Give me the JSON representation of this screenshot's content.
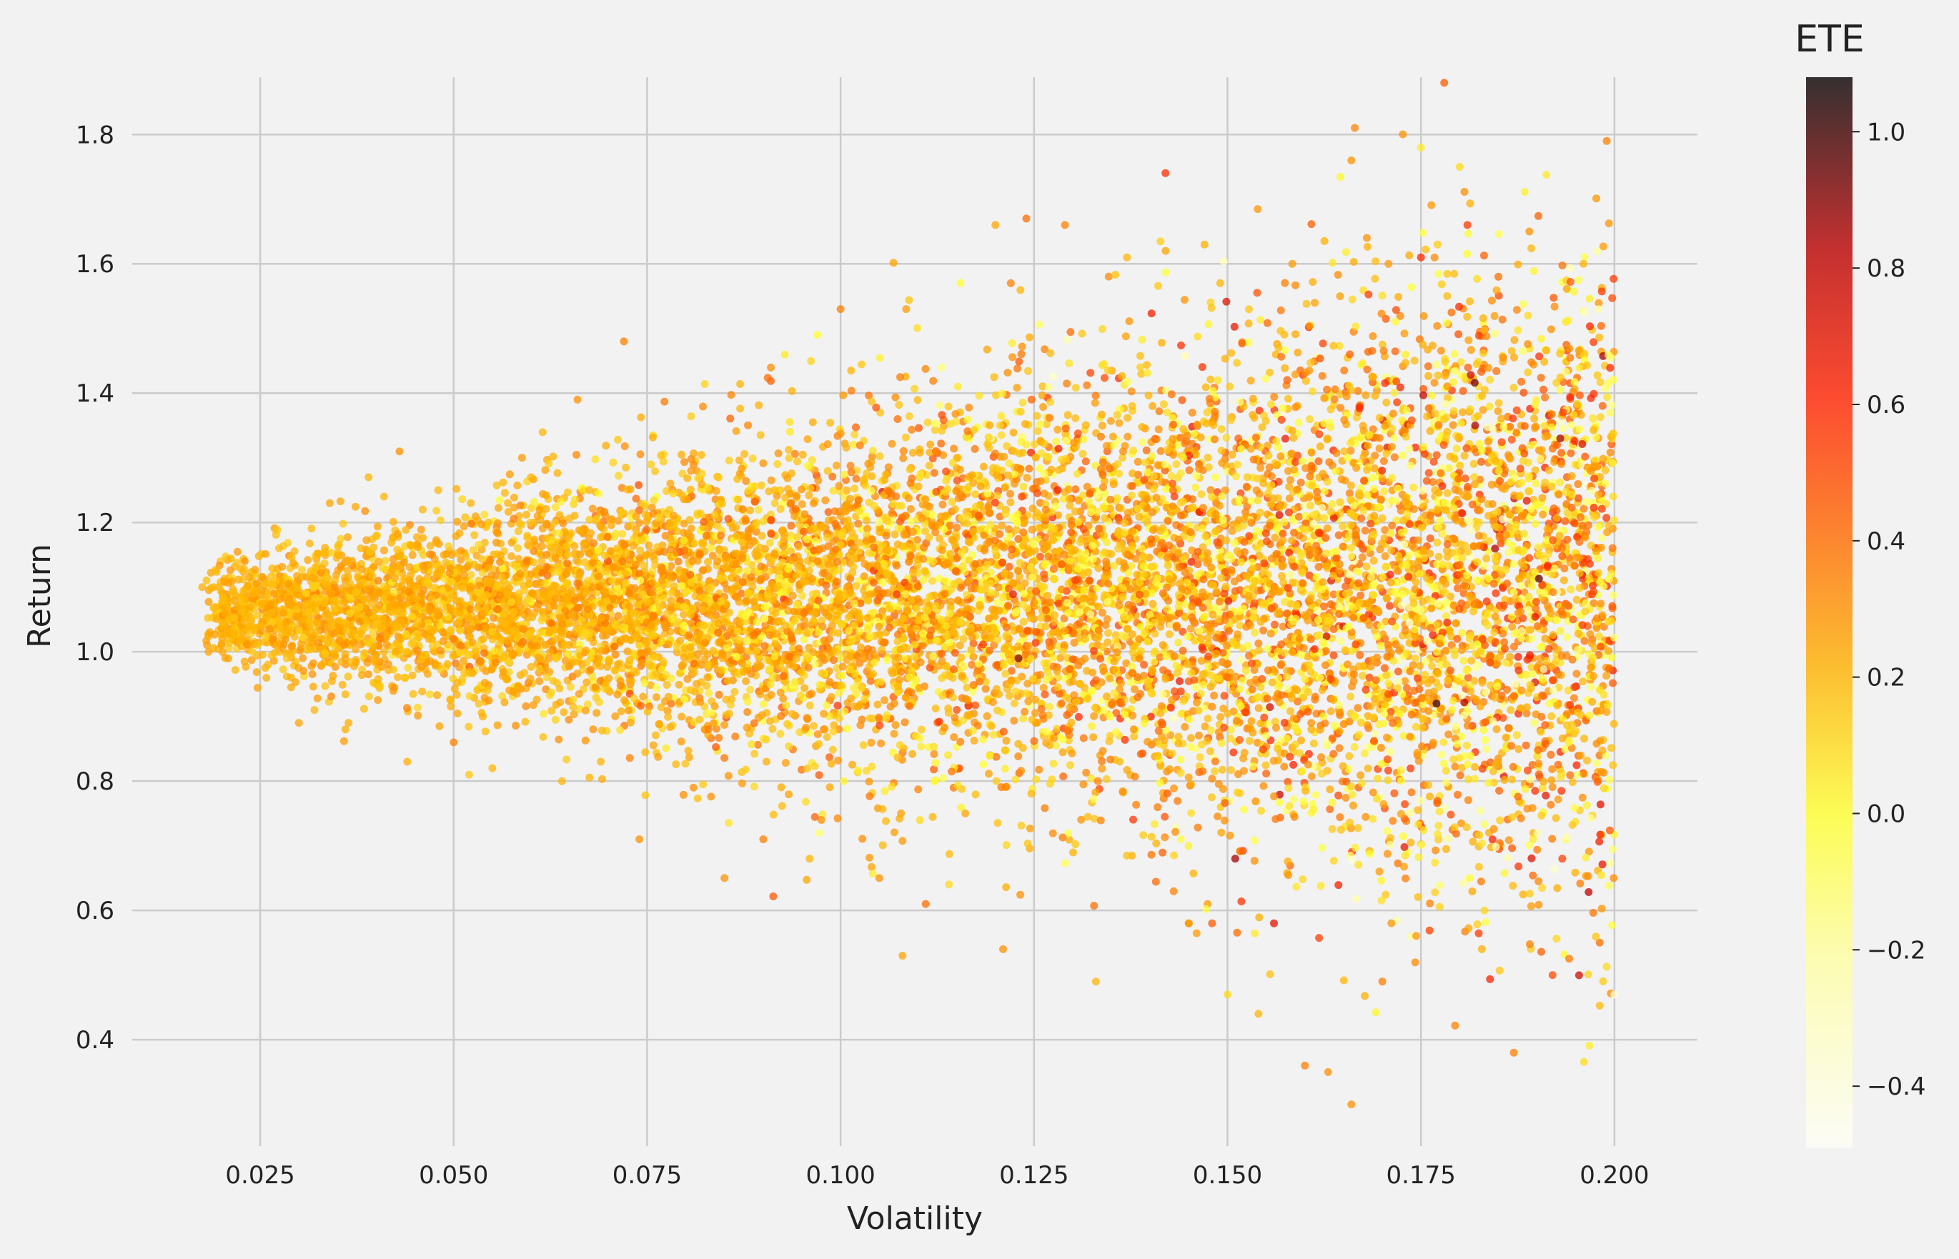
{
  "chart_data": {
    "type": "scatter",
    "title": "",
    "xlabel": "Volatility",
    "ylabel": "Return",
    "xlim": [
      0.008,
      0.211
    ],
    "ylim": [
      0.22,
      1.955
    ],
    "x_ticks": [
      0.025,
      0.05,
      0.075,
      0.1,
      0.125,
      0.15,
      0.175,
      0.2
    ],
    "x_tick_labels": [
      "0.025",
      "0.050",
      "0.075",
      "0.100",
      "0.125",
      "0.150",
      "0.175",
      "0.200"
    ],
    "y_ticks": [
      0.4,
      0.6,
      0.8,
      1.0,
      1.2,
      1.4,
      1.6,
      1.8
    ],
    "y_tick_labels": [
      "0.4",
      "0.6",
      "0.8",
      "1.0",
      "1.2",
      "1.4",
      "1.6",
      "1.8"
    ],
    "grid": true,
    "background": "#f2f2f2",
    "grid_color": "#cbcbcb",
    "marker_alpha": 0.75,
    "colorbar": {
      "label": "ETE",
      "colormap": "hot_r",
      "range": [
        -0.49,
        1.08
      ],
      "ticks": [
        -0.4,
        -0.2,
        0.0,
        0.2,
        0.4,
        0.6,
        0.8,
        1.0
      ],
      "tick_labels": [
        "−0.4",
        "−0.2",
        "0.0",
        "0.2",
        "0.4",
        "0.6",
        "0.8",
        "1.0"
      ]
    },
    "series": [
      {
        "points": [
          [
            0.0175,
            1.1,
            0.22
          ],
          [
            0.019,
            1.1,
            0.2
          ],
          [
            0.02,
            1.01,
            0.25
          ],
          [
            0.021,
            1.05,
            0.18
          ],
          [
            0.022,
            1.07,
            0.22
          ],
          [
            0.023,
            1.14,
            0.3
          ],
          [
            0.024,
            1.0,
            0.15
          ],
          [
            0.025,
            1.04,
            0.2
          ],
          [
            0.026,
            0.98,
            0.2
          ],
          [
            0.027,
            1.11,
            0.18
          ],
          [
            0.028,
            1.06,
            0.25
          ],
          [
            0.029,
            0.96,
            0.22
          ],
          [
            0.03,
            0.89,
            0.25
          ],
          [
            0.032,
            0.91,
            0.2
          ],
          [
            0.033,
            0.98,
            0.2
          ],
          [
            0.034,
            1.23,
            0.25
          ],
          [
            0.036,
            0.88,
            0.22
          ],
          [
            0.038,
            1.16,
            0.2
          ],
          [
            0.039,
            1.27,
            0.2
          ],
          [
            0.041,
            1.24,
            0.2
          ],
          [
            0.043,
            1.31,
            0.3
          ],
          [
            0.044,
            0.83,
            0.22
          ],
          [
            0.046,
            1.22,
            0.2
          ],
          [
            0.048,
            1.25,
            0.2
          ],
          [
            0.05,
            0.86,
            0.35
          ],
          [
            0.052,
            0.81,
            0.15
          ],
          [
            0.055,
            0.82,
            0.2
          ],
          [
            0.057,
            1.23,
            0.2
          ],
          [
            0.06,
            1.27,
            0.2
          ],
          [
            0.064,
            0.8,
            0.2
          ],
          [
            0.066,
            1.39,
            0.3
          ],
          [
            0.069,
            0.83,
            0.2
          ],
          [
            0.072,
            1.48,
            0.35
          ],
          [
            0.074,
            0.71,
            0.3
          ],
          [
            0.078,
            1.26,
            0.25
          ],
          [
            0.081,
            0.79,
            0.3
          ],
          [
            0.085,
            0.65,
            0.3
          ],
          [
            0.09,
            0.71,
            0.35
          ],
          [
            0.096,
            0.68,
            0.2
          ],
          [
            0.097,
            1.49,
            0.0
          ],
          [
            0.1,
            1.53,
            0.35
          ],
          [
            0.105,
            0.65,
            0.3
          ],
          [
            0.108,
            0.53,
            0.25
          ],
          [
            0.111,
            0.61,
            0.4
          ],
          [
            0.114,
            0.64,
            0.1
          ],
          [
            0.12,
            1.66,
            0.25
          ],
          [
            0.121,
            0.54,
            0.3
          ],
          [
            0.122,
            1.57,
            0.35
          ],
          [
            0.123,
            0.99,
            0.9
          ],
          [
            0.124,
            1.67,
            0.4
          ],
          [
            0.129,
            1.66,
            0.35
          ],
          [
            0.133,
            0.49,
            0.2
          ],
          [
            0.137,
            1.61,
            0.2
          ],
          [
            0.142,
            1.62,
            0.25
          ],
          [
            0.145,
            0.58,
            0.3
          ],
          [
            0.148,
            0.58,
            0.45
          ],
          [
            0.15,
            0.47,
            0.1
          ],
          [
            0.151,
            0.68,
            0.85
          ],
          [
            0.154,
            0.44,
            0.2
          ],
          [
            0.156,
            0.58,
            0.7
          ],
          [
            0.16,
            0.36,
            0.35
          ],
          [
            0.163,
            0.35,
            0.3
          ],
          [
            0.166,
            0.3,
            0.3
          ],
          [
            0.166,
            1.76,
            0.3
          ],
          [
            0.168,
            1.64,
            0.3
          ],
          [
            0.17,
            0.49,
            0.35
          ],
          [
            0.175,
            1.78,
            0.05
          ],
          [
            0.175,
            1.61,
            0.6
          ],
          [
            0.177,
            0.92,
            1.0
          ],
          [
            0.178,
            1.88,
            0.45
          ],
          [
            0.18,
            1.75,
            0.1
          ],
          [
            0.181,
            1.66,
            0.55
          ],
          [
            0.182,
            1.35,
            0.85
          ],
          [
            0.185,
            1.58,
            0.4
          ],
          [
            0.187,
            0.38,
            0.35
          ],
          [
            0.189,
            1.65,
            0.3
          ],
          [
            0.192,
            0.5,
            0.5
          ],
          [
            0.193,
            1.33,
            0.85
          ],
          [
            0.196,
            1.6,
            0.2
          ],
          [
            0.199,
            1.79,
            0.35
          ],
          [
            0.2,
            0.47,
            -0.4
          ]
        ]
      }
    ]
  }
}
